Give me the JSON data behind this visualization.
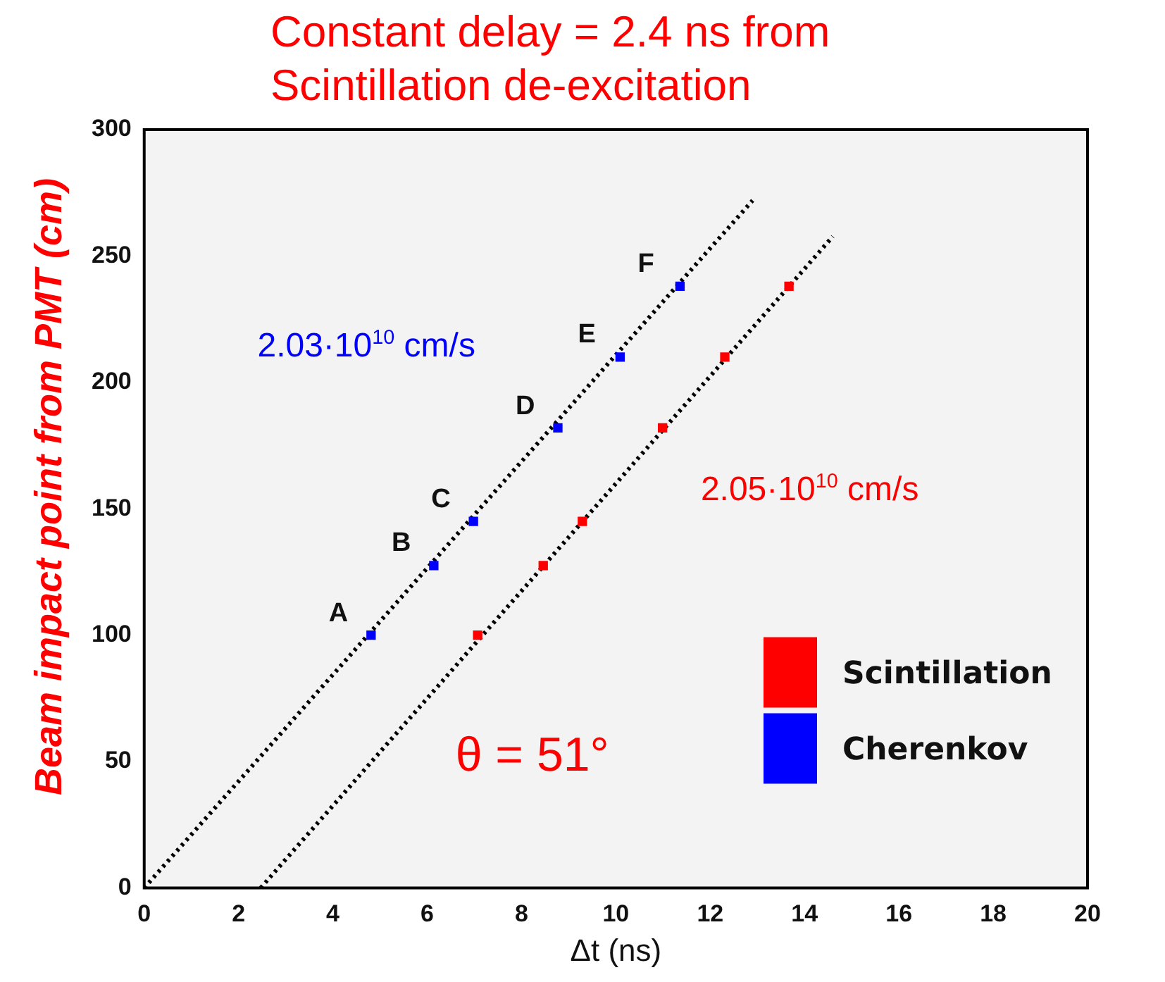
{
  "chart_data": {
    "type": "scatter",
    "title": "Constant delay = 2.4 ns from Scintillation de-excitation",
    "xlabel": "Δt (ns)",
    "ylabel": "Beam  impact point  from  PMT (cm)",
    "xlim": [
      0,
      20
    ],
    "xticks": [
      0,
      2,
      4,
      6,
      8,
      10,
      12,
      14,
      16,
      18,
      20
    ],
    "ylim": [
      0,
      300
    ],
    "yticks": [
      0,
      50,
      100,
      150,
      200,
      250,
      300
    ],
    "grid": false,
    "legend": "bottom right",
    "series": [
      {
        "name": "Scintillation",
        "color": "#ff0000",
        "marker": "square",
        "x": [
          7.07,
          8.46,
          9.29,
          10.99,
          12.31,
          13.67
        ],
        "values": [
          100,
          127.5,
          145,
          182,
          210,
          238
        ]
      },
      {
        "name": "Cherenkov",
        "color": "#0000ff",
        "marker": "square",
        "x": [
          4.81,
          6.14,
          6.98,
          8.77,
          10.09,
          11.36
        ],
        "values": [
          100,
          127.5,
          145,
          182,
          210,
          238
        ]
      },
      {
        "type": "line",
        "color": "#000000",
        "line_style": "dotted",
        "marker": "none",
        "x": [
          0,
          12.9
        ],
        "values": [
          0,
          272
        ]
      },
      {
        "type": "line",
        "color": "#000000",
        "line_style": "dotted",
        "marker": "none",
        "x": [
          2.47,
          14.6
        ],
        "values": [
          0,
          257.7
        ]
      }
    ],
    "annotations": [
      {
        "text": "A",
        "x": 4.81,
        "y": 100
      },
      {
        "text": "B",
        "x": 6.14,
        "y": 127.5
      },
      {
        "text": "C",
        "x": 6.98,
        "y": 145
      },
      {
        "text": "D",
        "x": 8.77,
        "y": 182
      },
      {
        "text": "E",
        "x": 10.09,
        "y": 210
      },
      {
        "text": "F",
        "x": 11.36,
        "y": 238
      },
      "2.03·10$^{10}$ cm/s",
      "2.05·10$^{10}$ cm/s",
      "θ = 51°"
    ]
  }
}
